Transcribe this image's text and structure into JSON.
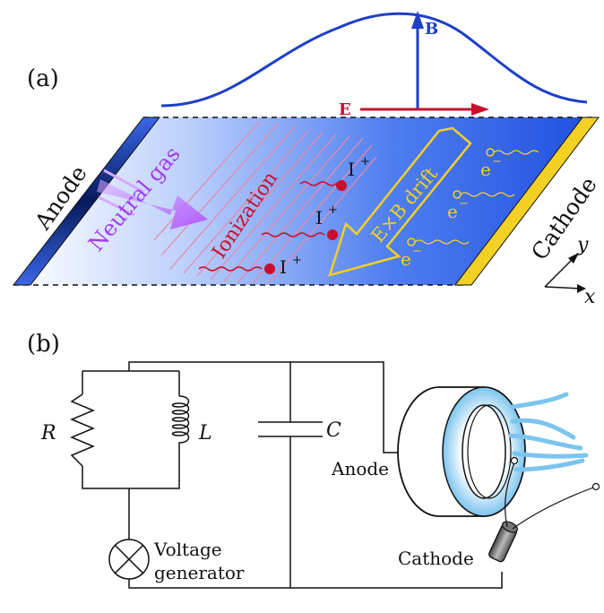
{
  "panel_a": {
    "label": "(a)",
    "b_label": "B",
    "e_label": "E",
    "anode": "Anode",
    "cathode": "Cathode",
    "neutral_gas": "Neutral gas",
    "ionization": "Ionization",
    "drift": "E×B drift",
    "ion": "I",
    "ion_sup": "+",
    "electron": "e",
    "electron_sup": "−",
    "axis_y": "y",
    "axis_x": "x",
    "colors": {
      "field_b": "#1e3fc8",
      "field_e": "#c8102e",
      "anode": "#0a2a8a",
      "cathode": "#f2d024",
      "channel": "#2f5fe6",
      "drift_arrow": "#f2d024",
      "neutral_gas": "#b14dfc"
    }
  },
  "panel_b": {
    "label": "(b)",
    "resistor": "R",
    "inductor": "L",
    "capacitor": "C",
    "anode": "Anode",
    "cathode": "Cathode",
    "voltage_line1": "Voltage",
    "voltage_line2": "generator",
    "colors": {
      "plume": "#7cc4ee",
      "thruster_glow": "#cfe9fb"
    }
  }
}
